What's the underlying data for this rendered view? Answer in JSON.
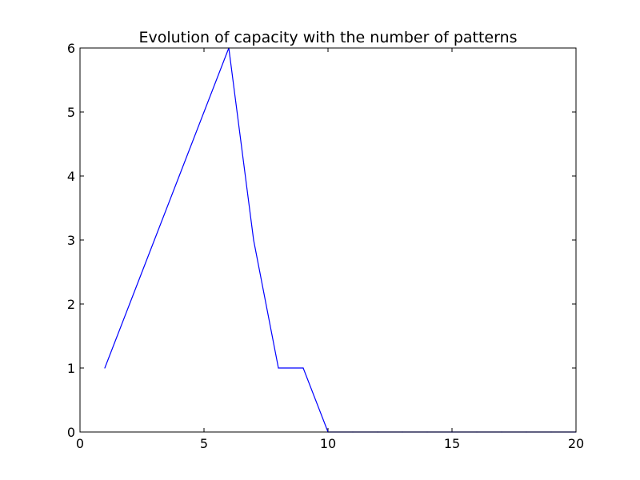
{
  "chart_data": {
    "type": "line",
    "title": "Evolution of capacity with the number of patterns",
    "xlabel": "",
    "ylabel": "",
    "xlim": [
      0,
      20
    ],
    "ylim": [
      0,
      6
    ],
    "x_ticks": [
      0,
      5,
      10,
      15,
      20
    ],
    "y_ticks": [
      0,
      1,
      2,
      3,
      4,
      5,
      6
    ],
    "grid": false,
    "series": [
      {
        "color": "#0000ff",
        "x": [
          1,
          2,
          3,
          4,
          5,
          6,
          7,
          8,
          9,
          10,
          11,
          12,
          13,
          14,
          15,
          16,
          17,
          18,
          19,
          20
        ],
        "values": [
          1,
          2,
          3,
          4,
          5,
          6,
          3,
          1,
          1,
          0,
          0,
          0,
          0,
          0,
          0,
          0,
          0,
          0,
          0,
          0
        ]
      }
    ]
  }
}
